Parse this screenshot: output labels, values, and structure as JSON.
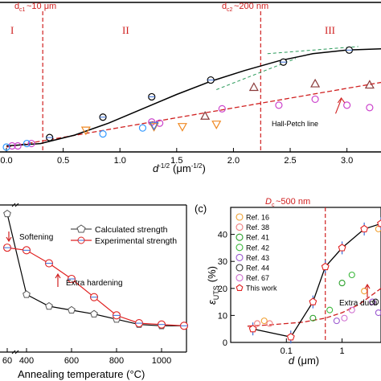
{
  "chart_data": [
    {
      "panel": "top",
      "type": "scatter",
      "xlabel": "d",
      "xlabel_sup": "-1/2",
      "xlabel_unit": "(μm",
      "xlabel_unit_sup": "-1/2",
      "xlabel_close": ")",
      "xlim": [
        0,
        3.3
      ],
      "x_ticks": [
        "0.0",
        "0.5",
        "1.0",
        "1.5",
        "2.0",
        "2.5",
        "3.0"
      ],
      "ylim": [
        0,
        1
      ],
      "regions": [
        "I",
        "II",
        "III"
      ],
      "annotations": {
        "dc1": "~10 μm",
        "dc1_x": 0.32,
        "dc2": "~200 nm",
        "dc2_x": 2.24,
        "hall_petch": "Hall-Petch line"
      },
      "fit_curve": {
        "x": [
          0,
          0.3,
          0.6,
          0.9,
          1.2,
          1.5,
          1.8,
          2.1,
          2.4,
          2.7,
          3.0,
          3.3
        ],
        "y": [
          0.03,
          0.05,
          0.12,
          0.22,
          0.34,
          0.46,
          0.57,
          0.66,
          0.74,
          0.8,
          0.83,
          0.84
        ]
      },
      "hall_petch_line": {
        "x": [
          0,
          3.3
        ],
        "y": [
          0.02,
          0.56
        ]
      },
      "series": [
        {
          "marker": "circle-black",
          "color": "#000000",
          "x": [
            0.38,
            0.85,
            1.28,
            1.8,
            2.44,
            3.02
          ],
          "y": [
            0.1,
            0.27,
            0.44,
            0.58,
            0.73,
            0.83
          ]
        },
        {
          "marker": "circle-magenta",
          "color": "#cc44cc",
          "x": [
            0.05,
            0.1,
            0.22,
            1.28,
            1.35,
            1.9,
            2.4,
            2.72,
            3.0,
            3.2
          ],
          "y": [
            0.03,
            0.03,
            0.05,
            0.23,
            0.22,
            0.34,
            0.37,
            0.42,
            0.37,
            0.35
          ]
        },
        {
          "marker": "circle-blue",
          "color": "#3399ff",
          "x": [
            0.0,
            0.18,
            0.85,
            1.2
          ],
          "y": [
            0.02,
            0.05,
            0.13,
            0.18
          ]
        },
        {
          "marker": "triangle-up-brown",
          "color": "#8b3a3a",
          "x": [
            1.75,
            2.18,
            2.72,
            3.2
          ],
          "y": [
            0.28,
            0.52,
            0.55,
            0.54
          ]
        },
        {
          "marker": "triangle-down-orange",
          "color": "#f08a24",
          "x": [
            0.7,
            1.3,
            1.55,
            1.85
          ],
          "y": [
            0.16,
            0.19,
            0.19,
            0.21
          ]
        },
        {
          "marker": "triangle-down-blue",
          "color": "#3a6fd8",
          "x": [
            1.3
          ],
          "y": [
            0.2
          ]
        }
      ]
    },
    {
      "panel": "bottom-left",
      "type": "line",
      "xlabel": "Annealing temperature (°C)",
      "x_ticks": [
        "60",
        "400",
        "600",
        "800",
        "1000"
      ],
      "legend": [
        "Calculated strength",
        "Experimental strength"
      ],
      "annotations": {
        "softening": "Softening",
        "extra_hardening": "Extra hardening"
      },
      "series": [
        {
          "name": "Calculated strength",
          "color": "#000000",
          "x": [
            60,
            400,
            500,
            600,
            700,
            800,
            900,
            1000,
            1100
          ],
          "y": [
            1.0,
            0.38,
            0.29,
            0.26,
            0.23,
            0.19,
            0.15,
            0.14,
            0.14
          ]
        },
        {
          "name": "Experimental strength",
          "color": "#e02020",
          "x": [
            60,
            400,
            500,
            600,
            700,
            800,
            900,
            1000,
            1100
          ],
          "y": [
            0.74,
            0.72,
            0.62,
            0.5,
            0.36,
            0.22,
            0.16,
            0.15,
            0.14
          ]
        }
      ]
    },
    {
      "panel": "c",
      "panel_label": "(c)",
      "type": "scatter",
      "xlabel": "d",
      "xlabel_unit": "(μm)",
      "ylabel": "ε",
      "ylabel_sub": "UTS",
      "ylabel_unit": "(%)",
      "xscale": "log",
      "xlim": [
        0.01,
        5
      ],
      "ylim": [
        0,
        50
      ],
      "x_ticks": [
        "0.1",
        "1"
      ],
      "y_ticks": [
        "0",
        "10",
        "20",
        "30",
        "40"
      ],
      "annotations": {
        "dc": "~500 nm",
        "dc_x": 0.5,
        "extra_ductility": "Extra ducti"
      },
      "legend": [
        {
          "label": "Ref. 16",
          "color": "#f0a030"
        },
        {
          "label": "Ref. 38",
          "color": "#f08080"
        },
        {
          "label": "Ref. 41",
          "color": "#2aa02a"
        },
        {
          "label": "Ref. 42",
          "color": "#3cb83c"
        },
        {
          "label": "Ref. 43",
          "color": "#9b59d0"
        },
        {
          "label": "Ref. 44",
          "color": "#333333"
        },
        {
          "label": "Ref. 67",
          "color": "#d070d0"
        },
        {
          "label": "This work",
          "color": "#e02020"
        }
      ],
      "this_work": {
        "x": [
          0.025,
          0.12,
          0.3,
          0.5,
          1.0,
          2.5,
          5.0
        ],
        "y": [
          5,
          2,
          15,
          28,
          35,
          42,
          44
        ]
      },
      "trend_curve": {
        "x": [
          0.02,
          0.05,
          0.1,
          0.2,
          0.5,
          1,
          2,
          5
        ],
        "y": [
          6,
          6.5,
          7,
          7.5,
          9,
          11,
          14,
          20
        ]
      },
      "points": [
        {
          "x": 0.03,
          "y": 7,
          "color": "#f08080"
        },
        {
          "x": 0.04,
          "y": 8,
          "color": "#f0a030"
        },
        {
          "x": 0.05,
          "y": 7,
          "color": "#f08080"
        },
        {
          "x": 0.3,
          "y": 9,
          "color": "#2aa02a"
        },
        {
          "x": 0.6,
          "y": 12,
          "color": "#3cb83c"
        },
        {
          "x": 0.8,
          "y": 8,
          "color": "#9b59d0"
        },
        {
          "x": 1.1,
          "y": 9,
          "color": "#d070d0"
        },
        {
          "x": 1.5,
          "y": 12,
          "color": "#d070d0"
        },
        {
          "x": 1.0,
          "y": 22,
          "color": "#2aa02a"
        },
        {
          "x": 1.5,
          "y": 25,
          "color": "#3cb83c"
        },
        {
          "x": 2.5,
          "y": 19,
          "color": "#f0a030"
        },
        {
          "x": 3.5,
          "y": 15,
          "color": "#9b59d0"
        },
        {
          "x": 4.5,
          "y": 11,
          "color": "#9b59d0"
        },
        {
          "x": 4.0,
          "y": 15,
          "color": "#333333"
        },
        {
          "x": 4.5,
          "y": 42,
          "color": "#f0a030"
        }
      ]
    }
  ]
}
